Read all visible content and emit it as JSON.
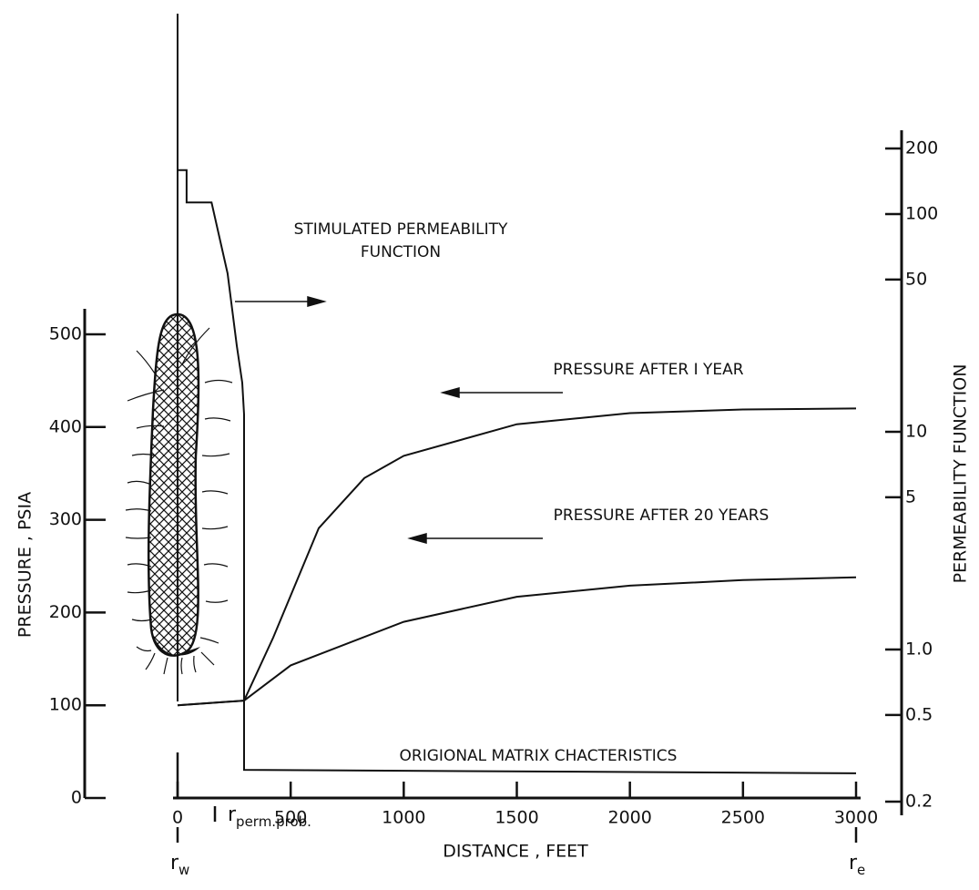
{
  "chart_data": {
    "type": "line",
    "xlabel": "DISTANCE , FEET",
    "ylabel": "PRESSURE , PSIA",
    "y2label": "PERMEABILITY FUNCTION",
    "xlim": [
      0,
      3000
    ],
    "xticks": [
      0,
      500,
      1000,
      1500,
      2000,
      2500,
      3000
    ],
    "ylim": [
      0,
      500
    ],
    "yticks": [
      0,
      100,
      200,
      300,
      400,
      500
    ],
    "y2lim": [
      0.2,
      200
    ],
    "y2scale": "log",
    "y2ticks": [
      {
        "value": 0.2,
        "label": "0.2"
      },
      0.5,
      {
        "value": 1,
        "label": "1.0"
      },
      5,
      10,
      50,
      100,
      200
    ],
    "series": [
      {
        "name": "PRESSURE AFTER I YEAR",
        "color": "#111111",
        "x": [
          0,
          294,
          423,
          624,
          826,
          1000,
          1500,
          2000,
          2500,
          3000
        ],
        "values": [
          100,
          105,
          173,
          291,
          345,
          369,
          403,
          415,
          419,
          420
        ]
      },
      {
        "name": "PRESSURE AFTER 20 YEARS",
        "color": "#111111",
        "x": [
          0,
          294,
          500,
          1000,
          1500,
          2000,
          2500,
          3000
        ],
        "values": [
          100,
          105,
          143,
          190,
          217,
          229,
          235,
          238
        ]
      },
      {
        "name": "STIMULATED PERMEABILITY FUNCTION",
        "color": "#111111",
        "axis": "y2",
        "x": [
          0,
          40,
          40,
          80,
          150,
          221,
          262,
          286,
          294,
          294,
          3000
        ],
        "values": [
          159,
          159,
          113,
          113,
          113,
          53.4,
          24.7,
          16.8,
          12,
          0.28,
          0.27
        ]
      }
    ],
    "annotations": [
      {
        "lines": [
          "STIMULATED PERMEABILITY",
          "FUNCTION"
        ]
      },
      {
        "lines": [
          "PRESSURE AFTER I YEAR"
        ]
      },
      {
        "lines": [
          "PRESSURE AFTER 20 YEARS"
        ]
      },
      {
        "lines": [
          "ORIGIONAL MATRIX CHACTERISTICS"
        ]
      }
    ],
    "markers": [
      {
        "base": "r",
        "sub": "w",
        "x": 0
      },
      {
        "base": "r",
        "sub": "perm.prob.",
        "x": 294
      },
      {
        "base": "r",
        "sub": "e",
        "x": 3000
      }
    ]
  }
}
